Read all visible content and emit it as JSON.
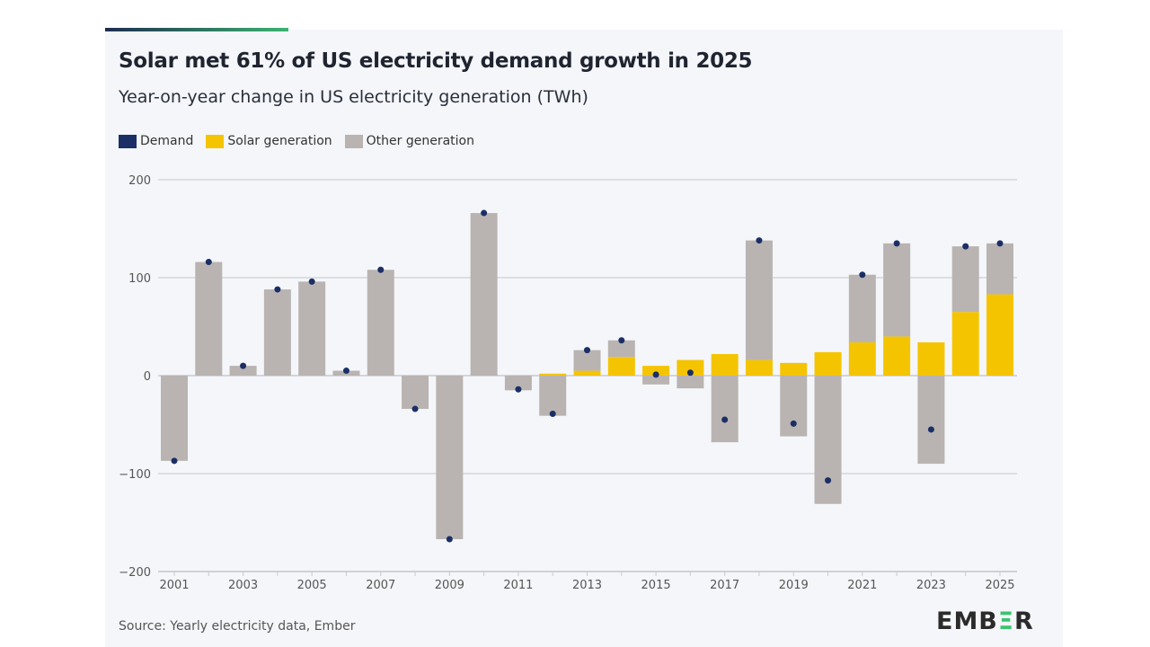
{
  "title": "Solar met 61% of US electricity demand growth in 2025",
  "subtitle": "Year-on-year change in US electricity generation (TWh)",
  "source": "Source: Yearly electricity data, Ember",
  "logo": "EMBER",
  "colors": {
    "demand": "#1b2f66",
    "solar": "#f5c400",
    "other": "#b9b4b1",
    "grid": "#d4d6da"
  },
  "chart_data": {
    "type": "bar",
    "stacked": true,
    "grid": true,
    "legend_position": "top-left",
    "ylim": [
      -200,
      200
    ],
    "yticks": [
      -200,
      -100,
      0,
      100,
      200
    ],
    "ytick_labels": [
      "−200",
      "−100",
      "0",
      "100",
      "200"
    ],
    "categories": [
      2001,
      2002,
      2003,
      2004,
      2005,
      2006,
      2007,
      2008,
      2009,
      2010,
      2011,
      2012,
      2013,
      2014,
      2015,
      2016,
      2017,
      2018,
      2019,
      2020,
      2021,
      2022,
      2023,
      2024,
      2025
    ],
    "xtick_labels": [
      "2001",
      "2003",
      "2005",
      "2007",
      "2009",
      "2011",
      "2013",
      "2015",
      "2017",
      "2019",
      "2021",
      "2023",
      "2025"
    ],
    "series": [
      {
        "name": "Demand",
        "type": "scatter",
        "values": [
          -87,
          116,
          10,
          88,
          96,
          5,
          108,
          -34,
          -167,
          166,
          -14,
          -39,
          26,
          36,
          1,
          3,
          -45,
          138,
          -49,
          -107,
          103,
          135,
          -55,
          132,
          135
        ]
      },
      {
        "name": "Solar generation",
        "type": "bar",
        "values": [
          0,
          0,
          0,
          0,
          0,
          0,
          0,
          0,
          0,
          0,
          0,
          2,
          5,
          19,
          10,
          16,
          22,
          16,
          13,
          24,
          34,
          40,
          34,
          65,
          83
        ]
      },
      {
        "name": "Other generation",
        "type": "bar",
        "values": [
          -87,
          116,
          10,
          88,
          96,
          5,
          108,
          -34,
          -167,
          166,
          -15,
          -41,
          21,
          17,
          -9,
          -13,
          -68,
          122,
          -62,
          -131,
          69,
          95,
          -90,
          67,
          52
        ]
      }
    ]
  }
}
